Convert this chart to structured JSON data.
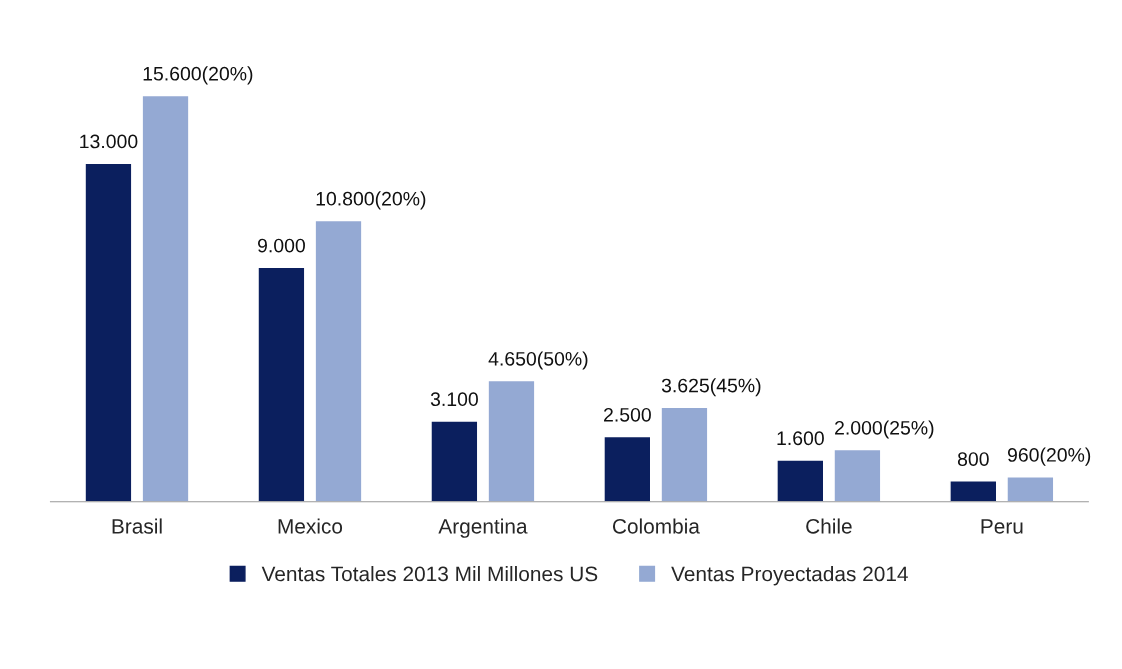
{
  "chart_data": {
    "type": "bar",
    "categories": [
      "Brasil",
      "Mexico",
      "Argentina",
      "Colombia",
      "Chile",
      "Peru"
    ],
    "series": [
      {
        "name": "Ventas Totales 2013 Mil Millones US",
        "color": "#0b1f5e",
        "values": [
          13000,
          9000,
          3100,
          2500,
          1600,
          800
        ],
        "value_labels": [
          "13.000",
          "9.000",
          "3.100",
          "2.500",
          "1.600",
          "800"
        ]
      },
      {
        "name": "Ventas Proyectadas 2014",
        "color": "#94a9d3",
        "values": [
          15600,
          10800,
          4650,
          3625,
          2000,
          960
        ],
        "value_labels": [
          "15.600(20%)",
          "10.800(20%)",
          "4.650(50%)",
          "3.625(45%)",
          "2.000(25%)",
          "960(20%)"
        ]
      }
    ],
    "legend": "bottom",
    "grid": false
  }
}
